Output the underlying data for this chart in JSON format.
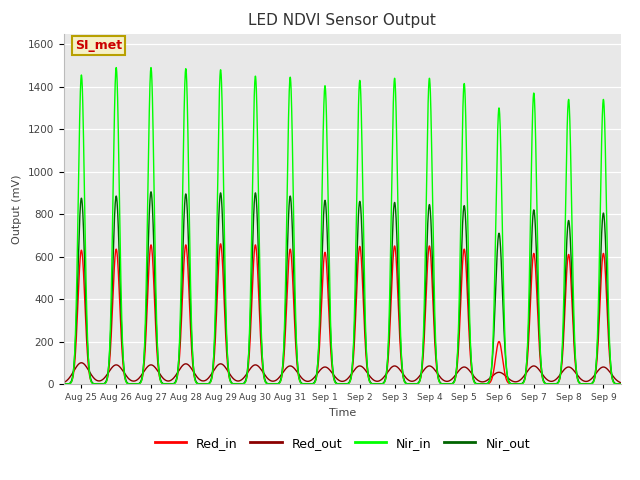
{
  "title": "LED NDVI Sensor Output",
  "xlabel": "Time",
  "ylabel": "Output (mV)",
  "ylim": [
    0,
    1650
  ],
  "yticks": [
    0,
    200,
    400,
    600,
    800,
    1000,
    1200,
    1400,
    1600
  ],
  "background_color": "#e8e8e8",
  "annotation_label": "SI_met",
  "annotation_bg": "#f5f0c8",
  "annotation_border": "#b8a000",
  "annotation_text_color": "#cc0000",
  "series": {
    "Red_in": {
      "color": "#ff0000",
      "lw": 1.0
    },
    "Red_out": {
      "color": "#8b0000",
      "lw": 1.0
    },
    "Nir_in": {
      "color": "#00ff00",
      "lw": 1.0
    },
    "Nir_out": {
      "color": "#006400",
      "lw": 1.0
    }
  },
  "n_cycles": 16,
  "peaks": {
    "Red_in": [
      630,
      635,
      655,
      655,
      660,
      655,
      635,
      620,
      648,
      650,
      650,
      635,
      200,
      615,
      610,
      615
    ],
    "Red_out": [
      100,
      90,
      90,
      95,
      95,
      90,
      85,
      80,
      85,
      85,
      85,
      80,
      55,
      85,
      80,
      80
    ],
    "Nir_in": [
      1455,
      1490,
      1490,
      1485,
      1480,
      1450,
      1445,
      1405,
      1430,
      1440,
      1440,
      1415,
      1300,
      1370,
      1340,
      1340
    ],
    "Nir_out": [
      875,
      885,
      905,
      895,
      900,
      900,
      885,
      865,
      860,
      855,
      845,
      840,
      710,
      820,
      770,
      805
    ]
  },
  "tick_labels": [
    "Aug 25",
    "Aug 26",
    "Aug 27",
    "Aug 28",
    "Aug 29",
    "Aug 30",
    "Aug 31",
    "Sep 1",
    "Sep 2",
    "Sep 3",
    "Sep 4",
    "Sep 5",
    "Sep 6",
    "Sep 7",
    "Sep 8",
    "Sep 9"
  ],
  "legend_fontsize": 9,
  "title_fontsize": 11
}
